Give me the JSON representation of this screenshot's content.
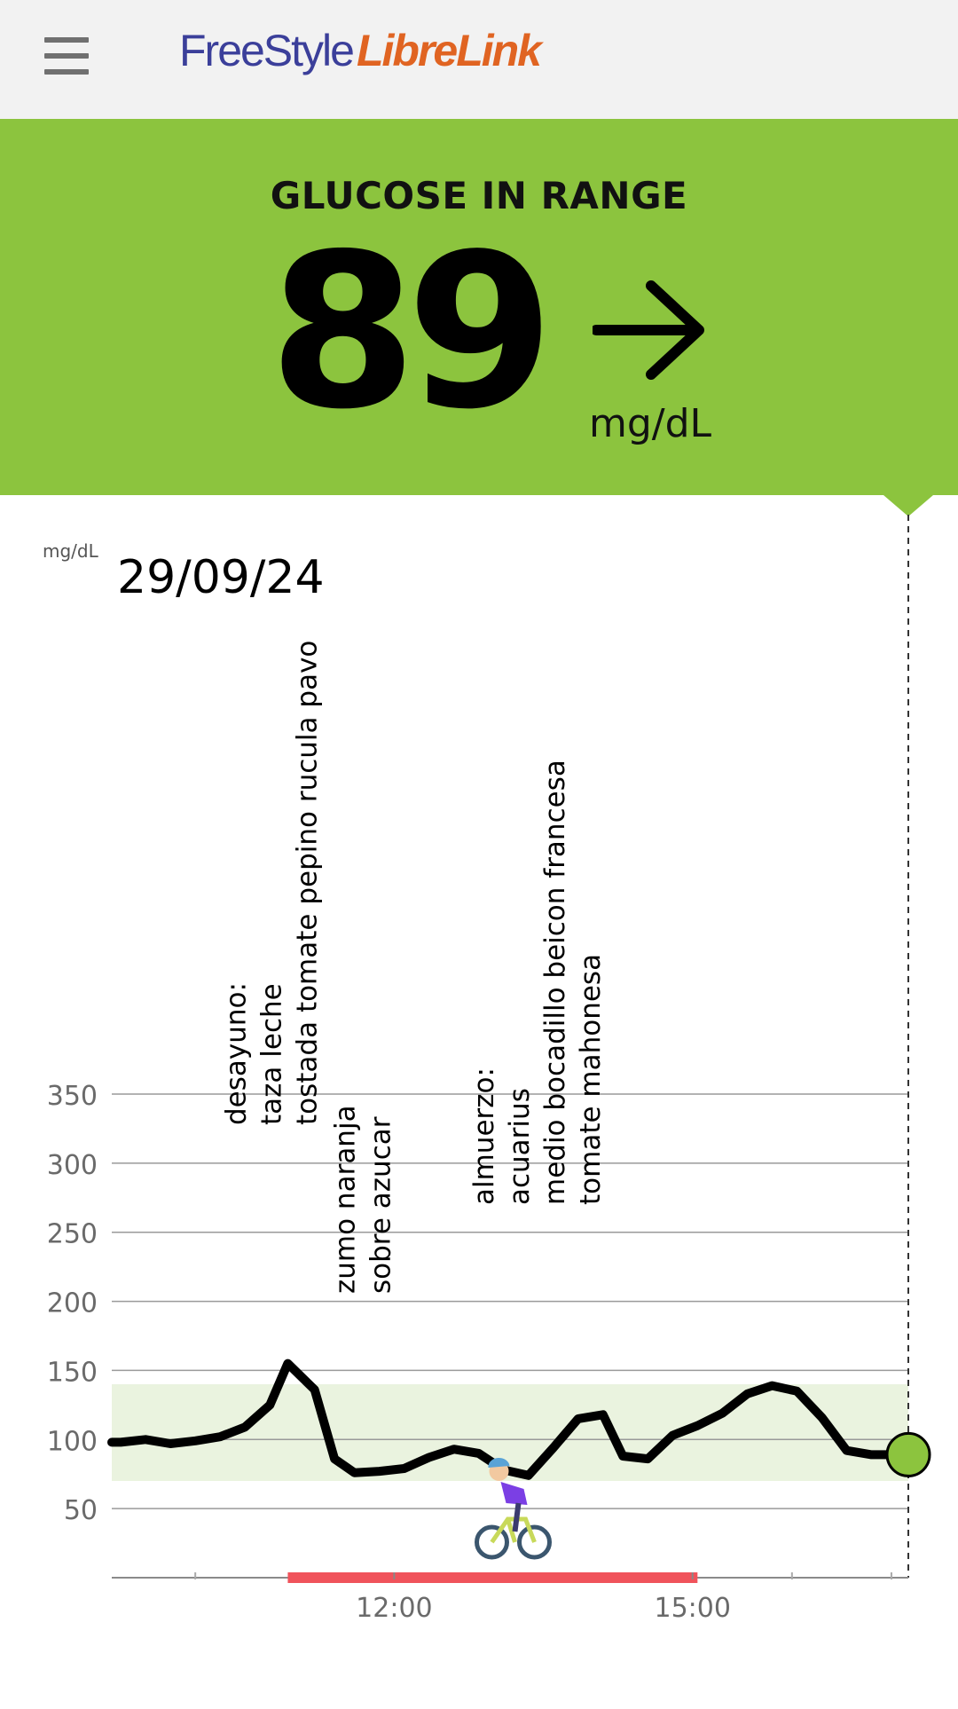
{
  "app": {
    "brand_part1": "FreeStyle",
    "brand_part2": "LibreLink"
  },
  "reading": {
    "status": "GLUCOSE IN RANGE",
    "value": "89",
    "unit": "mg/dL",
    "trend": "steady",
    "trend_icon": "arrow-right-icon"
  },
  "colors": {
    "in_range_banner": "#8cc43e",
    "target_band": "#eaf3df",
    "activity_bar": "#f0535b",
    "current_point": "#8cc43e",
    "line": "#000000"
  },
  "chart_data": {
    "type": "line",
    "date": "29/09/24",
    "ylabel": "mg/dL",
    "ylim": [
      0,
      350
    ],
    "yticks": [
      50,
      100,
      150,
      200,
      250,
      300,
      350
    ],
    "x_unit": "hours",
    "xlim": [
      9.16,
      17.17
    ],
    "xticks": [
      {
        "label": "12:00",
        "value": 12.0
      },
      {
        "label": "15:00",
        "value": 15.0
      }
    ],
    "minor_xticks": [
      10.0,
      11.0,
      13.0,
      14.0,
      16.0,
      17.0
    ],
    "target_range": [
      70,
      140
    ],
    "series": [
      {
        "x": [
          9.16,
          9.25,
          9.5,
          9.75,
          10.0,
          10.25,
          10.5,
          10.75,
          10.93,
          11.2,
          11.4,
          11.6,
          11.85,
          12.1,
          12.35,
          12.6,
          12.85,
          13.1,
          13.35,
          13.6,
          13.85,
          14.1,
          14.3,
          14.55,
          14.8,
          15.05,
          15.3,
          15.55,
          15.8,
          16.05,
          16.3,
          16.55,
          16.8,
          17.0,
          17.17
        ],
        "y": [
          98,
          98,
          100,
          97,
          99,
          102,
          109,
          125,
          155,
          136,
          86,
          76,
          77,
          79,
          87,
          93,
          90,
          78,
          74,
          94,
          115,
          118,
          88,
          86,
          103,
          110,
          119,
          133,
          139,
          135,
          116,
          92,
          89,
          89,
          89
        ]
      }
    ],
    "current_point": {
      "x": 17.17,
      "y": 89
    },
    "annotations": [
      {
        "lines": [
          "desayuno:",
          "taza leche",
          "tostada tomate pepino rucula pavo"
        ],
        "x": 10.93
      },
      {
        "lines": [
          "zumo naranja",
          "sobre azucar"
        ],
        "x": 11.85
      },
      {
        "lines": [
          "almuerzo:",
          "acuarius",
          "medio bocadillo beicon francesa",
          "tomate mahonesa"
        ],
        "x": 13.6
      }
    ],
    "activity": {
      "icon": "cyclist-icon",
      "x": 13.0,
      "start": 10.93,
      "end": 15.05
    }
  }
}
